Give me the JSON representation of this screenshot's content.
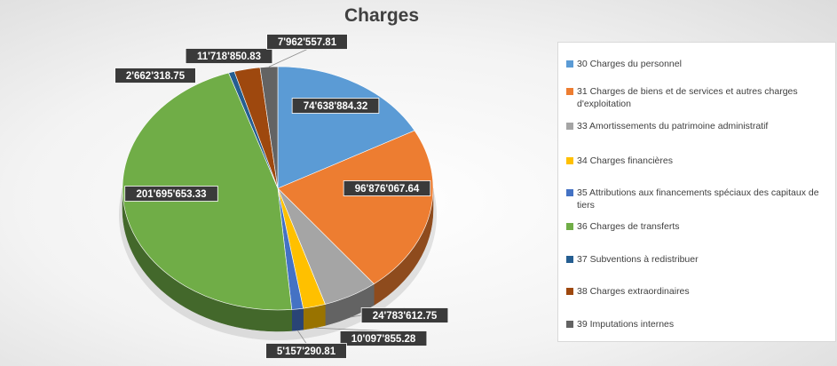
{
  "chart_data": {
    "type": "pie",
    "title": "Charges",
    "legend_position": "right",
    "slices": [
      {
        "label": "30 Charges du personnel",
        "value": 74638884.32,
        "value_label": "74'638'884.32",
        "color": "#5b9bd5"
      },
      {
        "label": "31 Charges de biens et de services et autres charges d'exploitation",
        "value": 96876067.64,
        "value_label": "96'876'067.64",
        "color": "#ed7d31"
      },
      {
        "label": "33 Amortissements du patrimoine administratif",
        "value": 24783612.75,
        "value_label": "24'783'612.75",
        "color": "#a5a5a5"
      },
      {
        "label": "34 Charges financières",
        "value": 10097855.28,
        "value_label": "10'097'855.28",
        "color": "#ffc000"
      },
      {
        "label": "35 Attributions aux financements spéciaux des capitaux de tiers",
        "value": 5157290.81,
        "value_label": "5'157'290.81",
        "color": "#4472c4"
      },
      {
        "label": "36 Charges de transferts",
        "value": 201695653.33,
        "value_label": "201'695'653.33",
        "color": "#70ad47"
      },
      {
        "label": "37 Subventions à redistribuer",
        "value": 2662318.75,
        "value_label": "2'662'318.75",
        "color": "#255e91"
      },
      {
        "label": "38 Charges extraordinaires",
        "value": 11718850.83,
        "value_label": "11'718'850.83",
        "color": "#9e480e"
      },
      {
        "label": "39 Imputations internes",
        "value": 7962557.81,
        "value_label": "7'962'557.81",
        "color": "#636363"
      }
    ]
  }
}
